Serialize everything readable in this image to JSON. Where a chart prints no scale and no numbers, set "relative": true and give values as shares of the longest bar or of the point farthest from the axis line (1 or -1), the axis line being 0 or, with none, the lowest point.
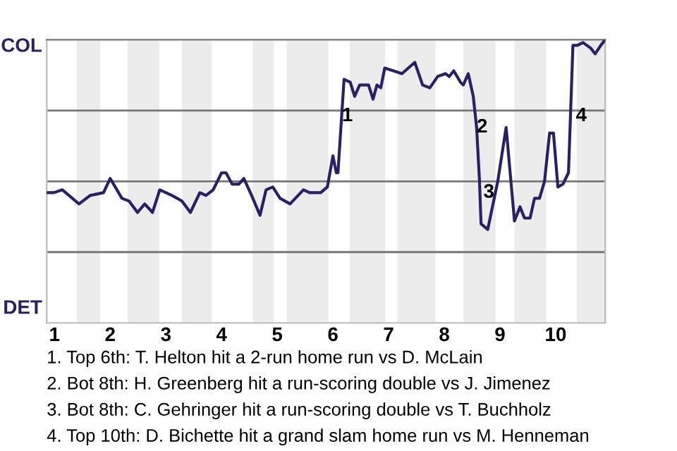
{
  "chart_data": {
    "type": "line",
    "relative": true,
    "series": [
      {
        "color": "#2b1f66",
        "x": [
          0.87,
          0.99,
          1.14,
          1.44,
          1.64,
          1.88,
          2.0,
          2.21,
          2.34,
          2.49,
          2.62,
          2.76,
          2.89,
          3.11,
          3.29,
          3.44,
          3.61,
          3.72,
          3.85,
          4.0,
          4.08,
          4.19,
          4.31,
          4.4,
          4.54,
          4.69,
          4.8,
          4.92,
          5.05,
          5.23,
          5.47,
          5.58,
          5.78,
          5.9,
          6.0,
          6.06,
          6.09,
          6.2,
          6.31,
          6.39,
          6.48,
          6.64,
          6.72,
          6.79,
          6.86,
          6.93,
          7.24,
          7.47,
          7.61,
          7.74,
          7.88,
          8.02,
          8.09,
          8.17,
          8.29,
          8.34,
          8.43,
          8.52,
          8.58,
          8.63,
          8.66,
          8.78,
          8.96,
          9.11,
          9.26,
          9.36,
          9.44,
          9.54,
          9.62,
          9.71,
          9.8,
          9.89,
          9.96,
          10.04,
          10.13,
          10.23,
          10.31,
          10.39,
          10.49,
          10.63,
          10.71,
          10.81,
          10.89
        ],
        "values": [
          0.46,
          0.46,
          0.47,
          0.42,
          0.45,
          0.46,
          0.51,
          0.44,
          0.43,
          0.39,
          0.42,
          0.39,
          0.47,
          0.45,
          0.43,
          0.39,
          0.46,
          0.45,
          0.47,
          0.53,
          0.53,
          0.49,
          0.49,
          0.51,
          0.45,
          0.38,
          0.47,
          0.48,
          0.44,
          0.42,
          0.47,
          0.46,
          0.46,
          0.48,
          0.59,
          0.53,
          0.53,
          0.86,
          0.85,
          0.8,
          0.84,
          0.84,
          0.79,
          0.84,
          0.83,
          0.9,
          0.88,
          0.92,
          0.84,
          0.83,
          0.87,
          0.88,
          0.87,
          0.89,
          0.85,
          0.84,
          0.88,
          0.8,
          0.69,
          0.51,
          0.35,
          0.33,
          0.5,
          0.69,
          0.36,
          0.41,
          0.37,
          0.37,
          0.44,
          0.44,
          0.5,
          0.67,
          0.67,
          0.48,
          0.49,
          0.53,
          0.98,
          0.98,
          0.99,
          0.97,
          0.95,
          0.98,
          1.0
        ]
      }
    ],
    "xlim": [
      0.86,
      10.89
    ],
    "xticks": [
      1,
      2,
      3,
      4,
      5,
      6,
      7,
      8,
      9,
      10
    ],
    "ref_lines": [
      {
        "axis": "y",
        "value": 0.25,
        "color": "#777777"
      },
      {
        "axis": "y",
        "value": 0.5,
        "color": "#777777"
      },
      {
        "axis": "y",
        "value": 0.75,
        "color": "#777777"
      }
    ],
    "bands": [
      {
        "axis": "x",
        "from": 1.4,
        "to": 1.82,
        "color": "#ececec"
      },
      {
        "axis": "x",
        "from": 2.31,
        "to": 2.88,
        "color": "#ececec"
      },
      {
        "axis": "x",
        "from": 3.29,
        "to": 3.82,
        "color": "#ececec"
      },
      {
        "axis": "x",
        "from": 4.56,
        "to": 4.94,
        "color": "#ececec"
      },
      {
        "axis": "x",
        "from": 5.17,
        "to": 5.92,
        "color": "#ececec"
      },
      {
        "axis": "x",
        "from": 6.3,
        "to": 6.94,
        "color": "#ececec"
      },
      {
        "axis": "x",
        "from": 7.16,
        "to": 7.84,
        "color": "#ececec"
      },
      {
        "axis": "x",
        "from": 8.34,
        "to": 8.92,
        "color": "#ececec"
      },
      {
        "axis": "x",
        "from": 9.26,
        "to": 9.83,
        "color": "#ececec"
      },
      {
        "axis": "x",
        "from": 10.38,
        "to": 10.89,
        "color": "#ececec"
      }
    ],
    "annotations": [
      "COL",
      "DET",
      {
        "text": "1",
        "x": 6.26,
        "y": 0.73
      },
      {
        "text": "2",
        "x": 8.68,
        "y": 0.69
      },
      {
        "text": "3",
        "x": 8.8,
        "y": 0.46
      },
      {
        "text": "4",
        "x": 10.46,
        "y": 0.73
      },
      "1. Top 6th: T. Helton hit a 2-run home run vs D. McLain",
      "2. Bot 8th: H. Greenberg hit a run-scoring double vs J. Jimenez",
      "3. Bot 8th: C. Gehringer hit a run-scoring double vs T. Buchholz",
      "4. Top 10th: D. Bichette hit a grand slam home run vs M. Henneman"
    ],
    "marker": "none",
    "line_style": "solid"
  }
}
